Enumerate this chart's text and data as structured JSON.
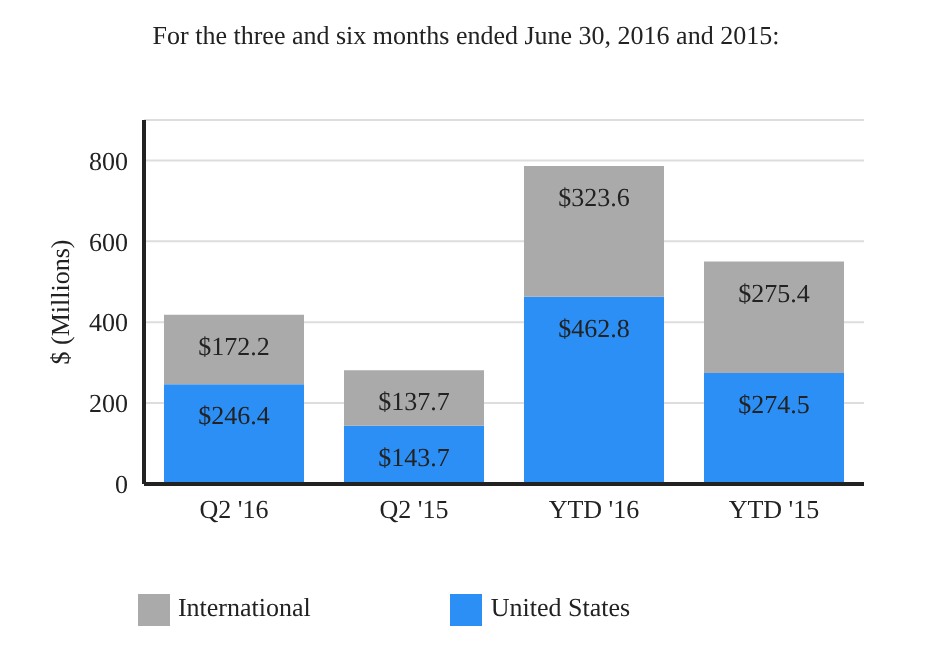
{
  "chart_data": {
    "type": "bar",
    "title": "For the three and six months ended June 30, 2016 and 2015:",
    "ylabel": "$ (Millions)",
    "categories": [
      "Q2 '16",
      "Q2 '15",
      "YTD '16",
      "YTD '15"
    ],
    "stacked": true,
    "series": [
      {
        "name": "United States",
        "color": "#2b8ff5",
        "values": [
          246.4,
          143.7,
          462.8,
          274.5
        ],
        "value_labels": [
          "$246.4",
          "$143.7",
          "$462.8",
          "$274.5"
        ]
      },
      {
        "name": "International",
        "color": "#aaaaaa",
        "values": [
          172.2,
          137.7,
          323.6,
          275.4
        ],
        "value_labels": [
          "$172.2",
          "$137.7",
          "$323.6",
          "$275.4"
        ]
      }
    ],
    "ylim": [
      0,
      900
    ],
    "yticks": [
      0,
      200,
      400,
      600,
      800
    ],
    "grid": "y",
    "legend": "bottom"
  }
}
